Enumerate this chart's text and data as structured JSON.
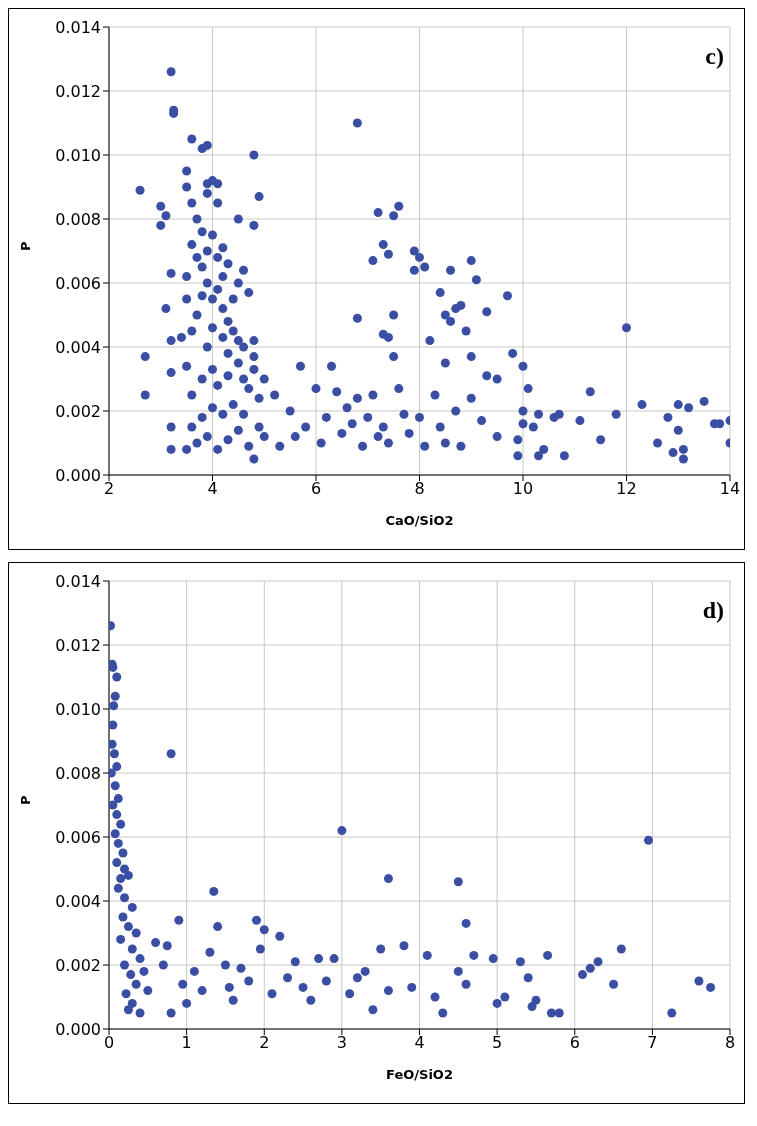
{
  "chart_data": [
    {
      "type": "scatter",
      "xlabel": "CaO/SiO2",
      "ylabel": "P",
      "annotations": [
        "c)"
      ],
      "grid": true,
      "marker": "circle",
      "color": "#3a4fa3",
      "xlim": [
        2,
        14
      ],
      "xticks": [
        2,
        4,
        6,
        8,
        10,
        12,
        14
      ],
      "ylim": [
        0,
        0.014
      ],
      "yticks": [
        {
          "value": 0,
          "label": "0.000"
        },
        {
          "value": 0.002,
          "label": "0.002"
        },
        {
          "value": 0.004,
          "label": "0.004"
        },
        {
          "value": 0.006,
          "label": "0.006"
        },
        {
          "value": 0.008,
          "label": "0.008"
        },
        {
          "value": 0.01,
          "label": "0.010"
        },
        {
          "value": 0.012,
          "label": "0.012"
        },
        {
          "value": 0.014,
          "label": "0.014"
        }
      ],
      "x": [
        3.2,
        3.25,
        3.25,
        3.6,
        3.8,
        3.9,
        4.8,
        6.8,
        2.6,
        3.0,
        3.1,
        3.0,
        3.5,
        3.5,
        3.9,
        4.0,
        4.1,
        4.9,
        4.5,
        4.8,
        7.2,
        7.5,
        7.6,
        7.3,
        7.1,
        7.4,
        7.9,
        8.0,
        7.9,
        8.1,
        8.6,
        9.0,
        9.1,
        8.4,
        9.7,
        8.8,
        8.7,
        9.3,
        8.5,
        8.6,
        7.5,
        7.3,
        7.4,
        6.8,
        7.5,
        8.2,
        8.9,
        8.5,
        9.0,
        9.8,
        10.0,
        9.3,
        12.0,
        3.2,
        3.1,
        3.2,
        3.4,
        3.2,
        2.7,
        2.7,
        3.2,
        3.2,
        3.5,
        9.5,
        9.5,
        9.9,
        9.9,
        10.0,
        10.1,
        10.0,
        10.2,
        10.3,
        10.3,
        10.4,
        10.6,
        10.7,
        10.8,
        11.1,
        11.3,
        11.5,
        11.8,
        12.3,
        12.6,
        12.8,
        12.9,
        13.0,
        13.0,
        13.1,
        13.1,
        13.2,
        13.5,
        13.7,
        13.8,
        14.0,
        14.0,
        5.0,
        5.2,
        5.5,
        5.7,
        5.8,
        6.0,
        6.1,
        6.2,
        6.3,
        6.4,
        6.5,
        6.6,
        6.8,
        6.9,
        7.0,
        7.1,
        7.2,
        7.4,
        7.6,
        7.7,
        7.8,
        8.0,
        8.1,
        8.3,
        8.4,
        8.5,
        8.7,
        8.8,
        9.0,
        9.2,
        5.3,
        5.6,
        6.7,
        7.3,
        3.6,
        3.7,
        3.8,
        3.6,
        3.7,
        3.8,
        3.9,
        4.0,
        4.1,
        4.2,
        4.3,
        4.2,
        4.1,
        4.0,
        3.9,
        3.8,
        3.7,
        4.2,
        4.3,
        4.4,
        4.5,
        4.6,
        4.7,
        4.4,
        4.5,
        4.6,
        4.3,
        4.2,
        4.0,
        3.9,
        3.6,
        3.5,
        3.6,
        3.8,
        4.0,
        4.1,
        4.3,
        4.5,
        4.6,
        4.7,
        4.8,
        4.9,
        4.4,
        4.2,
        4.0,
        3.8,
        3.6,
        3.7,
        3.9,
        4.1,
        4.3,
        4.5,
        4.7,
        4.8,
        4.9,
        5.0,
        4.6,
        4.8,
        4.8,
        3.5,
        3.5,
        4.1,
        3.9
      ],
      "values": [
        0.0126,
        0.0114,
        0.0113,
        0.0105,
        0.0102,
        0.0103,
        0.01,
        0.011,
        0.0089,
        0.0084,
        0.0081,
        0.0078,
        0.0095,
        0.009,
        0.0091,
        0.0092,
        0.0091,
        0.0087,
        0.008,
        0.0078,
        0.0082,
        0.0081,
        0.0084,
        0.0072,
        0.0067,
        0.0069,
        0.007,
        0.0068,
        0.0064,
        0.0065,
        0.0064,
        0.0067,
        0.0061,
        0.0057,
        0.0056,
        0.0053,
        0.0052,
        0.0051,
        0.005,
        0.0048,
        0.005,
        0.0044,
        0.0043,
        0.0049,
        0.0037,
        0.0042,
        0.0045,
        0.0035,
        0.0037,
        0.0038,
        0.0034,
        0.0031,
        0.0046,
        0.0063,
        0.0052,
        0.0042,
        0.0043,
        0.0032,
        0.0037,
        0.0025,
        0.0015,
        0.0008,
        0.0008,
        0.003,
        0.0012,
        0.0011,
        0.0006,
        0.002,
        0.0027,
        0.0016,
        0.0015,
        0.0006,
        0.0019,
        0.0008,
        0.0018,
        0.0019,
        0.0006,
        0.0017,
        0.0026,
        0.0011,
        0.0019,
        0.0022,
        0.001,
        0.0018,
        0.0007,
        0.0014,
        0.0022,
        0.0008,
        0.0005,
        0.0021,
        0.0023,
        0.0016,
        0.0016,
        0.001,
        0.0017,
        0.003,
        0.0025,
        0.002,
        0.0034,
        0.0015,
        0.0027,
        0.001,
        0.0018,
        0.0034,
        0.0026,
        0.0013,
        0.0021,
        0.0024,
        0.0009,
        0.0018,
        0.0025,
        0.0012,
        0.001,
        0.0027,
        0.0019,
        0.0013,
        0.0018,
        0.0009,
        0.0025,
        0.0015,
        0.001,
        0.002,
        0.0009,
        0.0024,
        0.0017,
        0.0009,
        0.0012,
        0.0016,
        0.0015,
        0.0085,
        0.008,
        0.0076,
        0.0072,
        0.0068,
        0.0065,
        0.007,
        0.0075,
        0.0068,
        0.0071,
        0.0066,
        0.0062,
        0.0058,
        0.0055,
        0.006,
        0.0056,
        0.005,
        0.0052,
        0.0048,
        0.0055,
        0.006,
        0.0064,
        0.0057,
        0.0045,
        0.0042,
        0.004,
        0.0038,
        0.0043,
        0.0046,
        0.004,
        0.0045,
        0.0034,
        0.0025,
        0.003,
        0.0033,
        0.0028,
        0.0031,
        0.0035,
        0.003,
        0.0027,
        0.0033,
        0.0024,
        0.0022,
        0.0019,
        0.0021,
        0.0018,
        0.0015,
        0.001,
        0.0012,
        0.0008,
        0.0011,
        0.0014,
        0.0009,
        0.0005,
        0.0015,
        0.0012,
        0.0019,
        0.0042,
        0.0037,
        0.0055,
        0.0062,
        0.0085,
        0.0088
      ]
    },
    {
      "type": "scatter",
      "xlabel": "FeO/SiO2",
      "ylabel": "P",
      "annotations": [
        "d)"
      ],
      "grid": true,
      "marker": "circle",
      "color": "#3a4fa3",
      "xlim": [
        0,
        8
      ],
      "xticks": [
        0,
        1,
        2,
        3,
        4,
        5,
        6,
        7,
        8
      ],
      "ylim": [
        0,
        0.014
      ],
      "yticks": [
        {
          "value": 0,
          "label": "0.000"
        },
        {
          "value": 0.002,
          "label": "0.002"
        },
        {
          "value": 0.004,
          "label": "0.004"
        },
        {
          "value": 0.006,
          "label": "0.006"
        },
        {
          "value": 0.008,
          "label": "0.008"
        },
        {
          "value": 0.01,
          "label": "0.010"
        },
        {
          "value": 0.012,
          "label": "0.012"
        },
        {
          "value": 0.014,
          "label": "0.014"
        }
      ],
      "x": [
        0.02,
        0.04,
        0.05,
        0.08,
        0.06,
        0.1,
        0.05,
        0.04,
        0.07,
        0.1,
        0.03,
        0.08,
        0.12,
        0.05,
        0.1,
        0.15,
        0.08,
        0.12,
        0.18,
        0.1,
        0.2,
        0.15,
        0.25,
        0.12,
        0.2,
        0.3,
        0.18,
        0.25,
        0.35,
        0.15,
        0.3,
        0.4,
        0.2,
        0.28,
        0.35,
        0.22,
        0.3,
        0.25,
        0.4,
        0.5,
        0.45,
        0.6,
        0.7,
        0.75,
        0.8,
        0.8,
        0.9,
        0.95,
        1.0,
        1.1,
        1.2,
        1.3,
        1.35,
        1.4,
        1.5,
        1.55,
        1.6,
        1.7,
        1.8,
        1.9,
        1.95,
        2.0,
        2.1,
        2.2,
        2.3,
        2.4,
        2.5,
        2.6,
        2.7,
        2.8,
        2.9,
        3.0,
        3.1,
        3.2,
        3.3,
        3.4,
        3.5,
        3.6,
        3.6,
        3.8,
        3.9,
        4.1,
        4.2,
        4.3,
        4.5,
        4.5,
        4.6,
        4.6,
        4.7,
        4.95,
        5.0,
        5.1,
        5.3,
        5.4,
        5.45,
        5.5,
        5.65,
        5.7,
        5.8,
        6.1,
        6.2,
        6.3,
        6.5,
        6.6,
        6.95,
        7.25,
        7.6,
        7.75
      ],
      "values": [
        0.0126,
        0.0114,
        0.0113,
        0.0104,
        0.0101,
        0.011,
        0.0095,
        0.0089,
        0.0086,
        0.0082,
        0.008,
        0.0076,
        0.0072,
        0.007,
        0.0067,
        0.0064,
        0.0061,
        0.0058,
        0.0055,
        0.0052,
        0.005,
        0.0047,
        0.0048,
        0.0044,
        0.0041,
        0.0038,
        0.0035,
        0.0032,
        0.003,
        0.0028,
        0.0025,
        0.0022,
        0.002,
        0.0017,
        0.0014,
        0.0011,
        0.0008,
        0.0006,
        0.0005,
        0.0012,
        0.0018,
        0.0027,
        0.002,
        0.0026,
        0.0086,
        0.0005,
        0.0034,
        0.0014,
        0.0008,
        0.0018,
        0.0012,
        0.0024,
        0.0043,
        0.0032,
        0.002,
        0.0013,
        0.0009,
        0.0019,
        0.0015,
        0.0034,
        0.0025,
        0.0031,
        0.0011,
        0.0029,
        0.0016,
        0.0021,
        0.0013,
        0.0009,
        0.0022,
        0.0015,
        0.0022,
        0.0062,
        0.0011,
        0.0016,
        0.0018,
        0.0006,
        0.0025,
        0.0047,
        0.0012,
        0.0026,
        0.0013,
        0.0023,
        0.001,
        0.0005,
        0.0046,
        0.0018,
        0.0033,
        0.0014,
        0.0023,
        0.0022,
        0.0008,
        0.001,
        0.0021,
        0.0016,
        0.0007,
        0.0009,
        0.0023,
        0.0005,
        0.0005,
        0.0017,
        0.0019,
        0.0021,
        0.0014,
        0.0025,
        0.0059,
        0.0005,
        0.0015,
        0.0013
      ]
    }
  ]
}
